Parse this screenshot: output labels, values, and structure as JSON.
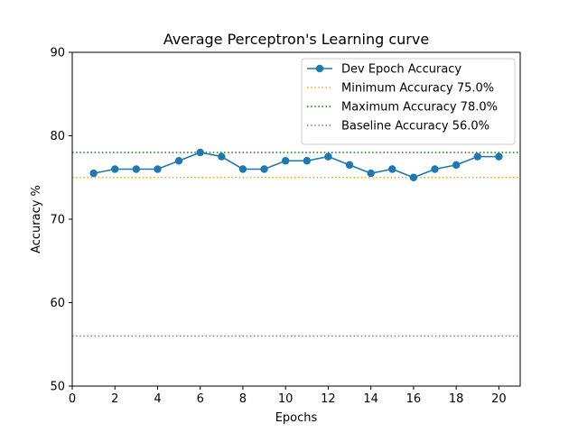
{
  "chart_data": {
    "type": "line",
    "title": "Average Perceptron's Learning curve",
    "xlabel": "Epochs",
    "ylabel": "Accuracy %",
    "xlim": [
      0,
      21
    ],
    "ylim": [
      50,
      90
    ],
    "xticks": [
      0,
      2,
      4,
      6,
      8,
      10,
      12,
      14,
      16,
      18,
      20
    ],
    "yticks": [
      50,
      60,
      70,
      80,
      90
    ],
    "grid": false,
    "legend_position": "top-right",
    "series": [
      {
        "name": "Dev Epoch Accuracy",
        "color": "#1f77b4",
        "marker": "circle",
        "x": [
          1,
          2,
          3,
          4,
          5,
          6,
          7,
          8,
          9,
          10,
          11,
          12,
          13,
          14,
          15,
          16,
          17,
          18,
          19,
          20
        ],
        "y": [
          75.5,
          76.0,
          76.0,
          76.0,
          77.0,
          78.0,
          77.5,
          76.0,
          76.0,
          77.0,
          77.0,
          77.5,
          76.5,
          75.5,
          76.0,
          75.0,
          76.0,
          76.5,
          77.5,
          77.5
        ]
      }
    ],
    "reference_lines": [
      {
        "name": "Minimum Accuracy 75.0%",
        "value": 75.0,
        "color": "#ffa500"
      },
      {
        "name": "Maximum Accuracy 78.0%",
        "value": 78.0,
        "color": "#008000"
      },
      {
        "name": "Baseline Accuracy 56.0%",
        "value": 56.0,
        "color": "#808080"
      }
    ]
  }
}
